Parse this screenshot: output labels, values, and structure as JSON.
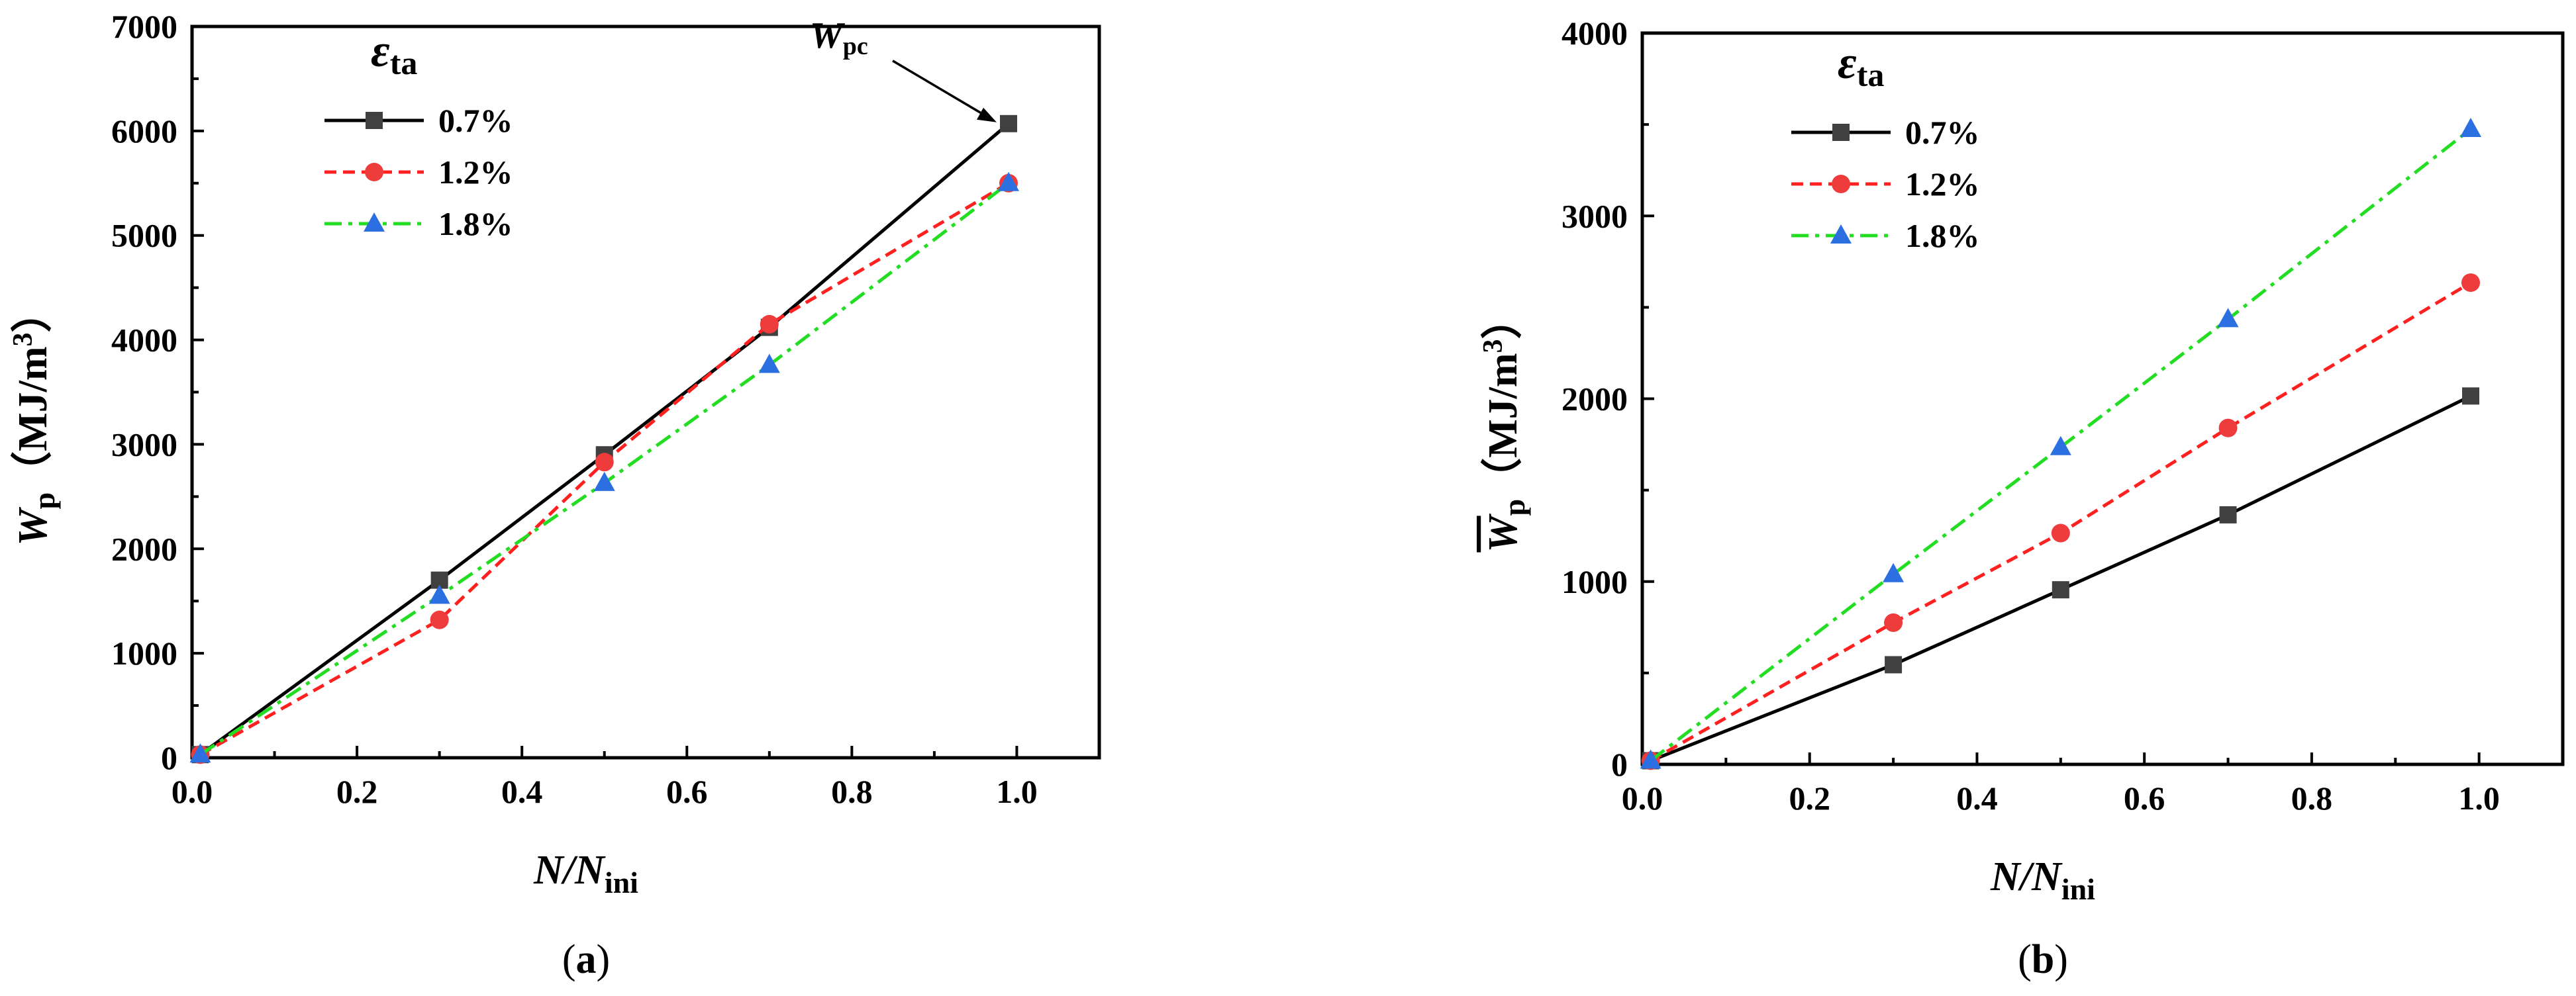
{
  "panels": [
    {
      "panel_label": "a",
      "y_symbol": "W",
      "y_sub": "p",
      "y_unit": "（MJ/m",
      "y_unit_sup": "3",
      "y_unit_close": "）",
      "overline": false,
      "annotation": {
        "symbol": "W",
        "sub": "pc"
      }
    },
    {
      "panel_label": "b",
      "y_symbol": "W",
      "y_sub": "p",
      "y_unit": "（MJ/m",
      "y_unit_sup": "3",
      "y_unit_close": "）",
      "overline": true,
      "annotation": null
    }
  ],
  "x_title": {
    "main": "N/N",
    "sub": "ini"
  },
  "legend": {
    "title_symbol": "ε",
    "title_sub": "ta"
  },
  "colors": {
    "s1": "#000000",
    "s1_marker": "#404040",
    "s2": "#ff2020",
    "s2_marker": "#ee3b3b",
    "s3": "#22dd22",
    "s3_marker": "#2b6fe0"
  },
  "chart_data": [
    {
      "type": "line",
      "xlabel": "N/Nini",
      "ylabel": "Wp（MJ/m3）",
      "xlim": [
        0,
        1.1
      ],
      "ylim": [
        0,
        7000
      ],
      "xticks": [
        "0.0",
        "0.2",
        "0.4",
        "0.6",
        "0.8",
        "1.0"
      ],
      "yticks": [
        "0",
        "1000",
        "2000",
        "3000",
        "4000",
        "5000",
        "6000",
        "7000"
      ],
      "legend_position": "top-left",
      "series": [
        {
          "name": "0.7%",
          "marker": "square",
          "style": "solid",
          "x": [
            0.01,
            0.3,
            0.5,
            0.7,
            0.99
          ],
          "y": [
            30,
            1700,
            2900,
            4120,
            6070
          ]
        },
        {
          "name": "1.2%",
          "marker": "circle",
          "style": "dash",
          "x": [
            0.01,
            0.3,
            0.5,
            0.7,
            0.99
          ],
          "y": [
            30,
            1320,
            2830,
            4150,
            5500
          ]
        },
        {
          "name": "1.8%",
          "marker": "triangle",
          "style": "dashdot",
          "x": [
            0.01,
            0.3,
            0.5,
            0.7,
            0.99
          ],
          "y": [
            30,
            1550,
            2630,
            3760,
            5500
          ]
        }
      ]
    },
    {
      "type": "line",
      "xlabel": "N/Nini",
      "ylabel": "W̄p（MJ/m3）",
      "xlim": [
        0,
        1.1
      ],
      "ylim": [
        0,
        4000
      ],
      "xticks": [
        "0.0",
        "0.2",
        "0.4",
        "0.6",
        "0.8",
        "1.0"
      ],
      "yticks": [
        "0",
        "1000",
        "2000",
        "3000",
        "4000"
      ],
      "legend_position": "top-left",
      "series": [
        {
          "name": "0.7%",
          "marker": "square",
          "style": "solid",
          "x": [
            0.01,
            0.3,
            0.5,
            0.7,
            0.99
          ],
          "y": [
            20,
            545,
            955,
            1365,
            2015
          ]
        },
        {
          "name": "1.2%",
          "marker": "circle",
          "style": "dash",
          "x": [
            0.01,
            0.3,
            0.5,
            0.7,
            0.99
          ],
          "y": [
            20,
            775,
            1265,
            1840,
            2635
          ]
        },
        {
          "name": "1.8%",
          "marker": "triangle",
          "style": "dashdot",
          "x": [
            0.01,
            0.3,
            0.5,
            0.7,
            0.99
          ],
          "y": [
            20,
            1040,
            1735,
            2435,
            3475
          ]
        }
      ]
    }
  ]
}
